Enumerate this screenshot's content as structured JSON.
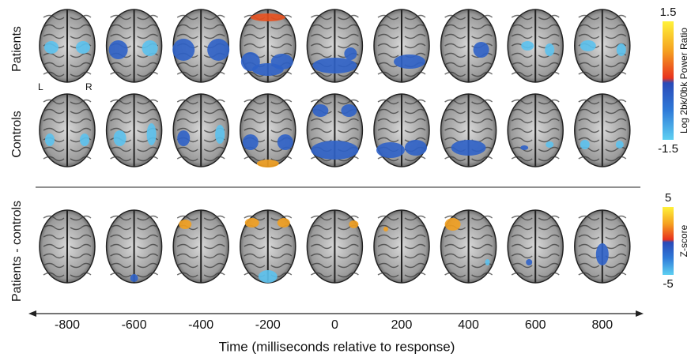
{
  "rows": [
    {
      "label": "Patients"
    },
    {
      "label": "Controls"
    },
    {
      "label": "Patients - controls"
    }
  ],
  "hemisphere_labels": {
    "left": "L",
    "right": "R"
  },
  "time_axis": {
    "title": "Time (milliseconds relative to response)",
    "ticks": [
      -800,
      -600,
      -400,
      -200,
      0,
      200,
      400,
      600,
      800
    ]
  },
  "colorbars": [
    {
      "label": "Log 2bk/0bk Power Ratio",
      "max": 1.5,
      "min": -1.5
    },
    {
      "label": "Z-score",
      "max": 5,
      "min": -5
    }
  ]
}
